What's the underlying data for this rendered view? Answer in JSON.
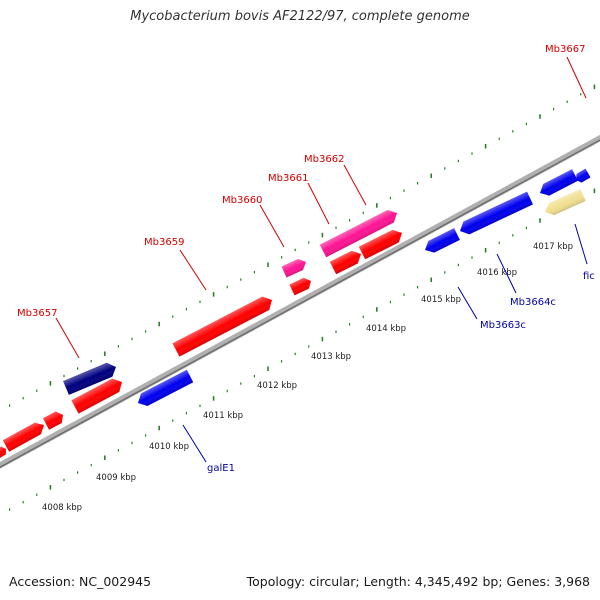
{
  "title": "Mycobacterium bovis AF2122/97, complete genome",
  "footer": {
    "accession": "Accession: NC_002945",
    "summary": "Topology: circular; Length: 4,345,492 bp; Genes: 3,968"
  },
  "colors": {
    "backbone": "#9a9a9a",
    "ruler_ticks": "#2a7f2a",
    "forward_label": "#d40000",
    "reverse_label": "#0000aa",
    "forward_gene": "#ff0000",
    "reverse_gene": "#0000ee",
    "highlight_gene": "#ff1493",
    "dark_gene": "#000080",
    "pale_gene": "#f0e090"
  },
  "ruler_labels": [
    "4008 kbp",
    "4009 kbp",
    "4010 kbp",
    "4011 kbp",
    "4012 kbp",
    "4013 kbp",
    "4014 kbp",
    "4015 kbp",
    "4016 kbp",
    "4017 kbp"
  ],
  "gene_labels": {
    "forward": [
      "Mb3657",
      "Mb3659",
      "Mb3660",
      "Mb3661",
      "Mb3662",
      "Mb3667"
    ],
    "reverse": [
      "galE1",
      "Mb3663c",
      "Mb3664c",
      "fic"
    ]
  }
}
